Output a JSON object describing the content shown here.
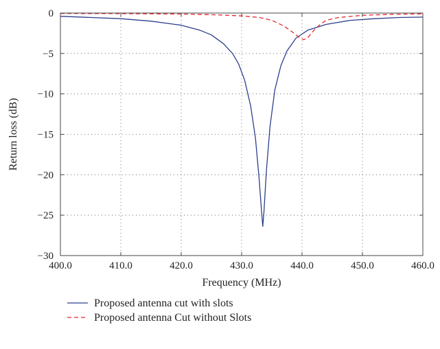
{
  "chart_data": {
    "type": "line",
    "xlabel": "Frequency (MHz)",
    "ylabel": "Return loss (dB)",
    "xlim": [
      400,
      460
    ],
    "ylim": [
      -30,
      0
    ],
    "x_ticks": [
      400,
      410,
      420,
      430,
      440,
      450,
      460
    ],
    "x_tick_labels": [
      "400.0",
      "410.0",
      "420.0",
      "430.0",
      "440.0",
      "450.0",
      "460.0"
    ],
    "y_ticks": [
      0,
      -5,
      -10,
      -15,
      -20,
      -25,
      -30
    ],
    "y_tick_labels": [
      "0",
      "−5",
      "−10",
      "−15",
      "−20",
      "−25",
      "−30"
    ],
    "grid": true,
    "grid_style": "dotted",
    "legend_position": "below",
    "series": [
      {
        "name": "Proposed antenna cut with slots",
        "color": "#2c3e8c",
        "style": "solid",
        "x": [
          400,
          410,
          415,
          420,
          423,
          425,
          427,
          428.5,
          429.5,
          430.5,
          431.5,
          432.3,
          432.9,
          433.3,
          433.5,
          433.7,
          434.1,
          434.7,
          435.5,
          436.5,
          437.5,
          439,
          441,
          444,
          448,
          452,
          456,
          460
        ],
        "y": [
          -0.4,
          -0.7,
          -1.0,
          -1.5,
          -2.1,
          -2.7,
          -3.8,
          -5.0,
          -6.3,
          -8.3,
          -11.5,
          -15.5,
          -20.5,
          -24.5,
          -26.4,
          -24.5,
          -19.5,
          -14.0,
          -9.5,
          -6.5,
          -4.7,
          -3.1,
          -2.1,
          -1.4,
          -0.9,
          -0.7,
          -0.55,
          -0.5
        ]
      },
      {
        "name": "Proposed antenna Cut without Slots",
        "color": "#e8262e",
        "style": "dashed",
        "x": [
          400,
          410,
          420,
          425,
          430,
          433,
          435,
          437,
          438.5,
          439.5,
          440.3,
          441,
          442,
          443,
          444,
          446,
          450,
          455,
          460
        ],
        "y": [
          -0.05,
          -0.07,
          -0.12,
          -0.2,
          -0.35,
          -0.55,
          -0.9,
          -1.6,
          -2.4,
          -3.0,
          -3.3,
          -3.0,
          -2.1,
          -1.4,
          -0.9,
          -0.55,
          -0.28,
          -0.15,
          -0.1
        ]
      }
    ]
  }
}
